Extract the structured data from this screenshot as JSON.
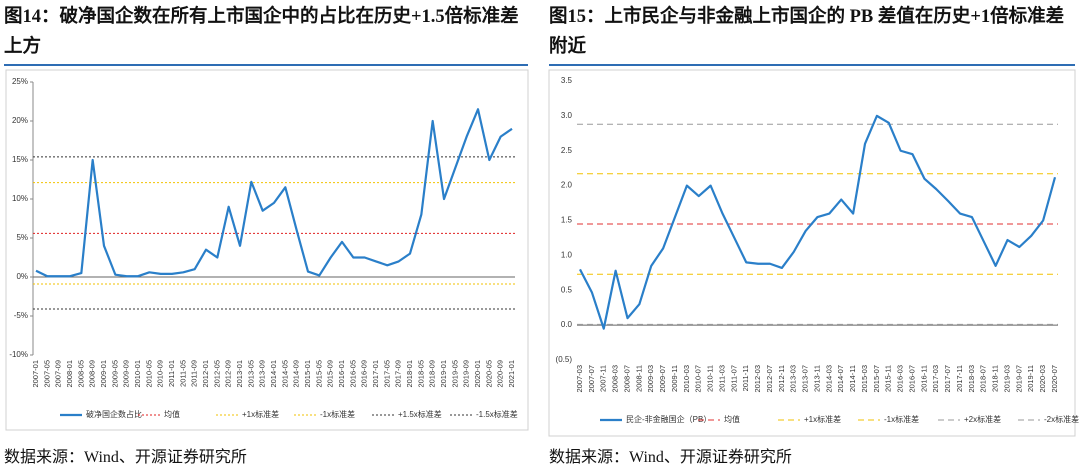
{
  "chart_data": [
    {
      "type": "line",
      "title": "图14：破净国企数在所有上市国企中的占比在历史+1.5倍标准差上方",
      "source": "数据来源：Wind、开源证券研究所",
      "categories": [
        "2007-01",
        "2007-05",
        "2007-09",
        "2008-01",
        "2008-05",
        "2008-09",
        "2009-01",
        "2009-05",
        "2009-09",
        "2010-01",
        "2010-05",
        "2010-09",
        "2011-01",
        "2011-05",
        "2011-09",
        "2012-01",
        "2012-05",
        "2012-09",
        "2013-01",
        "2013-05",
        "2013-09",
        "2014-01",
        "2014-05",
        "2014-09",
        "2015-01",
        "2015-05",
        "2015-09",
        "2016-01",
        "2016-05",
        "2016-09",
        "2017-01",
        "2017-05",
        "2017-09",
        "2018-01",
        "2018-05",
        "2018-09",
        "2019-01",
        "2019-05",
        "2019-09",
        "2020-01",
        "2020-05",
        "2020-09",
        "2021-01"
      ],
      "series": [
        {
          "name": "破净国企数占比",
          "color": "#2a7fc9",
          "values": [
            0.8,
            0.1,
            0.1,
            0.1,
            0.5,
            15,
            4,
            0.3,
            0.1,
            0.1,
            0.6,
            0.4,
            0.4,
            0.6,
            1.0,
            3.5,
            2.5,
            9.0,
            4.0,
            12.2,
            8.5,
            9.5,
            11.5,
            6.0,
            0.7,
            0.2,
            2.5,
            4.5,
            2.5,
            2.5,
            2.0,
            1.5,
            2.0,
            3.0,
            8.0,
            20.0,
            10.0,
            14.0,
            18.0,
            21.5,
            15.0,
            18.0,
            19.0
          ]
        }
      ],
      "reference_lines": [
        {
          "name": "均值",
          "value": 5.6,
          "color": "#e02020",
          "style": "dotted"
        },
        {
          "name": "+1x标准差",
          "value": 12.1,
          "color": "#f2c200",
          "style": "dotted"
        },
        {
          "name": "-1x标准差",
          "value": -0.9,
          "color": "#f2c200",
          "style": "dotted"
        },
        {
          "name": "+1.5x标准差",
          "value": 15.4,
          "color": "#333333",
          "style": "dotted"
        },
        {
          "name": "-1.5x标准差",
          "value": -4.1,
          "color": "#333333",
          "style": "dotted"
        }
      ],
      "ylim": [
        -10,
        25
      ],
      "yticks": [
        {
          "value": -10,
          "label": "-10%"
        },
        {
          "value": -5,
          "label": "-5%"
        },
        {
          "value": 0,
          "label": "0%"
        },
        {
          "value": 5,
          "label": "5%"
        },
        {
          "value": 10,
          "label": "10%"
        },
        {
          "value": 15,
          "label": "15%"
        },
        {
          "value": 20,
          "label": "20%"
        },
        {
          "value": 25,
          "label": "25%"
        }
      ],
      "grid": false,
      "legend": "bottom"
    },
    {
      "type": "line",
      "title": "图15：上市民企与非金融上市国企的 PB 差值在历史+1倍标准差附近",
      "source": "数据来源：Wind、开源证券研究所",
      "categories": [
        "2007-03",
        "2007-07",
        "2007-11",
        "2008-03",
        "2008-07",
        "2008-11",
        "2009-03",
        "2009-07",
        "2009-11",
        "2010-03",
        "2010-07",
        "2010-11",
        "2011-03",
        "2011-07",
        "2011-11",
        "2012-03",
        "2012-07",
        "2012-11",
        "2013-03",
        "2013-07",
        "2013-11",
        "2014-03",
        "2014-07",
        "2014-11",
        "2015-03",
        "2015-07",
        "2015-11",
        "2016-03",
        "2016-07",
        "2016-11",
        "2017-03",
        "2017-07",
        "2017-11",
        "2018-03",
        "2018-07",
        "2018-11",
        "2019-03",
        "2019-07",
        "2019-11",
        "2020-03",
        "2020-07"
      ],
      "series": [
        {
          "name": "民企-非金融国企（PB）",
          "color": "#2a7fc9",
          "values": [
            0.8,
            0.47,
            -0.05,
            0.78,
            0.1,
            0.3,
            0.85,
            1.1,
            1.55,
            2.0,
            1.85,
            2.0,
            1.6,
            1.25,
            0.9,
            0.88,
            0.88,
            0.82,
            1.05,
            1.35,
            1.55,
            1.6,
            1.8,
            1.6,
            2.6,
            3.0,
            2.9,
            2.5,
            2.45,
            2.1,
            1.95,
            1.78,
            1.6,
            1.55,
            1.2,
            0.85,
            1.22,
            1.12,
            1.28,
            1.5,
            2.12
          ]
        }
      ],
      "reference_lines": [
        {
          "name": "均值",
          "value": 1.45,
          "color": "#e03030",
          "style": "dashed"
        },
        {
          "name": "+1x标准差",
          "value": 2.17,
          "color": "#f2c200",
          "style": "dashed"
        },
        {
          "name": "-1x标准差",
          "value": 0.73,
          "color": "#f2c200",
          "style": "dashed"
        },
        {
          "name": "+2x标准差",
          "value": 2.88,
          "color": "#9a9a9a",
          "style": "dashed"
        },
        {
          "name": "-2x标准差",
          "value": 0.01,
          "color": "#9a9a9a",
          "style": "dashed"
        }
      ],
      "ylim": [
        -0.5,
        3.5
      ],
      "yticks": [
        {
          "value": -0.5,
          "label": "(0.5)"
        },
        {
          "value": 0,
          "label": "0.0"
        },
        0.5,
        {
          "value": 1,
          "label": "1.0"
        },
        1.5,
        {
          "value": 2,
          "label": "2.0"
        },
        2.5,
        {
          "value": 3,
          "label": "3.0"
        },
        3.5
      ],
      "grid": false,
      "legend": "bottom"
    }
  ]
}
